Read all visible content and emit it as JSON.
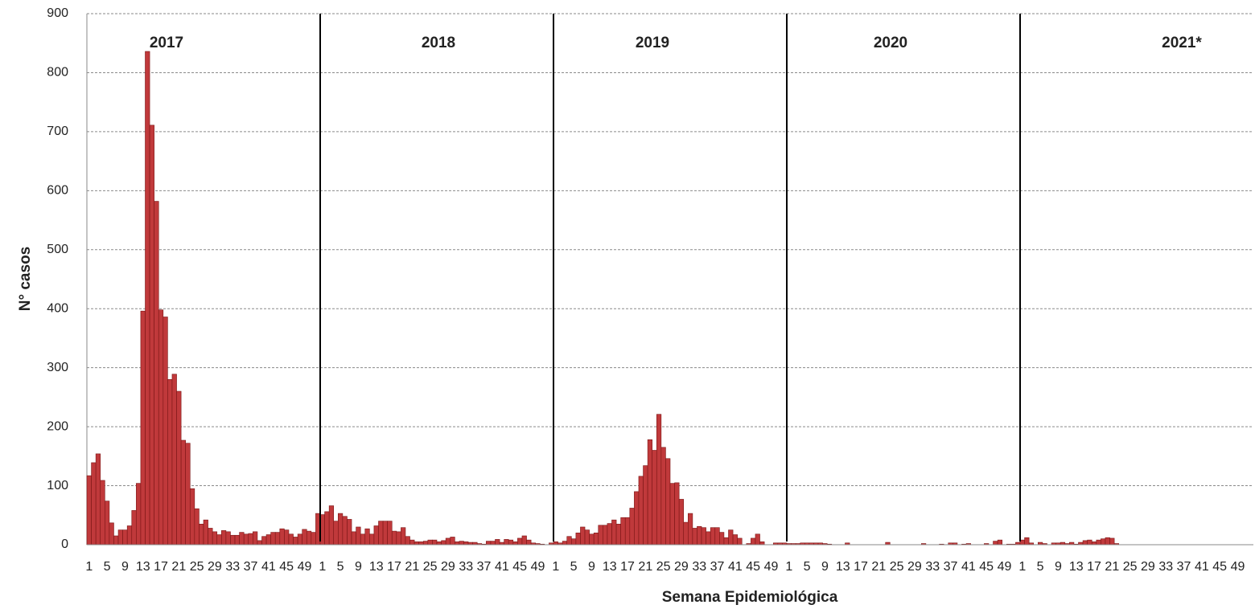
{
  "chart_data": {
    "type": "bar",
    "x_label": "Semana Epidemiológica",
    "y_label": "N° casos",
    "annotations": [
      "2017",
      "2018",
      "2019",
      "2020",
      "2021*"
    ],
    "color": "#c0393b",
    "grid": true,
    "ylim": [
      0,
      900
    ],
    "yticks": [
      0,
      100,
      200,
      300,
      400,
      500,
      600,
      700,
      800,
      900
    ],
    "categories": [
      "1",
      null,
      null,
      null,
      "5",
      null,
      null,
      null,
      "9",
      null,
      null,
      null,
      "13",
      null,
      null,
      null,
      "17",
      null,
      null,
      null,
      "21",
      null,
      null,
      null,
      "25",
      null,
      null,
      null,
      "29",
      null,
      null,
      null,
      "33",
      null,
      null,
      null,
      "37",
      null,
      null,
      null,
      "41",
      null,
      null,
      null,
      "45",
      null,
      null,
      null,
      "49",
      null,
      null,
      null,
      "1",
      null,
      null,
      null,
      "5",
      null,
      null,
      null,
      "9",
      null,
      null,
      null,
      "13",
      null,
      null,
      null,
      "17",
      null,
      null,
      null,
      "21",
      null,
      null,
      null,
      "25",
      null,
      null,
      null,
      "29",
      null,
      null,
      null,
      "33",
      null,
      null,
      null,
      "37",
      null,
      null,
      null,
      "41",
      null,
      null,
      null,
      "45",
      null,
      null,
      null,
      "49",
      null,
      null,
      null,
      "1",
      null,
      null,
      null,
      "5",
      null,
      null,
      null,
      "9",
      null,
      null,
      null,
      "13",
      null,
      null,
      null,
      "17",
      null,
      null,
      null,
      "21",
      null,
      null,
      null,
      "25",
      null,
      null,
      null,
      "29",
      null,
      null,
      null,
      "33",
      null,
      null,
      null,
      "37",
      null,
      null,
      null,
      "41",
      null,
      null,
      null,
      "45",
      null,
      null,
      null,
      "49",
      null,
      null,
      null,
      "1",
      null,
      null,
      null,
      "5",
      null,
      null,
      null,
      "9",
      null,
      null,
      null,
      "13",
      null,
      null,
      null,
      "17",
      null,
      null,
      null,
      "21",
      null,
      null,
      null,
      "25",
      null,
      null,
      null,
      "29",
      null,
      null,
      null,
      "33",
      null,
      null,
      null,
      "37",
      null,
      null,
      null,
      "41",
      null,
      null,
      null,
      "45",
      null,
      null,
      null,
      "49",
      null,
      null,
      null,
      "1",
      null,
      null,
      null,
      "5",
      null,
      null,
      null,
      "9",
      null,
      null,
      null,
      "13",
      null,
      null,
      null,
      "17",
      null,
      null,
      null,
      "21",
      null,
      null,
      null,
      "25",
      null,
      null,
      null,
      "29",
      null,
      null,
      null,
      "33",
      null,
      null,
      null,
      "37",
      null,
      null,
      null,
      "41",
      null,
      null,
      null,
      "45",
      null,
      null,
      null,
      "49",
      null,
      null,
      null
    ],
    "values": [
      117,
      139,
      154,
      109,
      74,
      37,
      15,
      25,
      25,
      32,
      58,
      104,
      396,
      836,
      711,
      582,
      398,
      386,
      280,
      289,
      260,
      177,
      172,
      95,
      61,
      35,
      42,
      28,
      22,
      17,
      24,
      22,
      16,
      16,
      21,
      18,
      19,
      22,
      7,
      14,
      17,
      21,
      21,
      27,
      25,
      18,
      13,
      18,
      26,
      23,
      21,
      53,
      51,
      56,
      66,
      40,
      53,
      48,
      43,
      22,
      30,
      18,
      27,
      18,
      32,
      40,
      40,
      40,
      23,
      22,
      29,
      14,
      8,
      5,
      5,
      6,
      8,
      8,
      5,
      7,
      11,
      13,
      5,
      6,
      5,
      4,
      4,
      2,
      1,
      6,
      6,
      9,
      4,
      9,
      8,
      5,
      11,
      15,
      8,
      3,
      2,
      1,
      0,
      3,
      5,
      3,
      6,
      14,
      10,
      20,
      30,
      25,
      18,
      20,
      33,
      33,
      36,
      42,
      35,
      46,
      46,
      62,
      90,
      116,
      134,
      178,
      160,
      221,
      165,
      146,
      104,
      105,
      77,
      38,
      53,
      28,
      31,
      29,
      22,
      29,
      29,
      21,
      12,
      25,
      17,
      11,
      0,
      2,
      11,
      18,
      5,
      0,
      0,
      3,
      3,
      3,
      2,
      2,
      2,
      3,
      3,
      3,
      3,
      3,
      2,
      1,
      0,
      0,
      0,
      3,
      0,
      0,
      0,
      0,
      0,
      0,
      0,
      0,
      4,
      0,
      0,
      0,
      0,
      0,
      0,
      0,
      2,
      0,
      0,
      0,
      1,
      0,
      3,
      3,
      0,
      1,
      2,
      0,
      0,
      0,
      2,
      0,
      6,
      8,
      0,
      1,
      1,
      4,
      8,
      12,
      3,
      0,
      4,
      2,
      0,
      3,
      3,
      4,
      2,
      4,
      1,
      4,
      7,
      8,
      5,
      8,
      10,
      12,
      11,
      2,
      null,
      null,
      null,
      null,
      null,
      null,
      null,
      null,
      null,
      null,
      null,
      null,
      null,
      null,
      null,
      null,
      null,
      null,
      null,
      null,
      null,
      null,
      null,
      null,
      null,
      null,
      null,
      null,
      null,
      null
    ]
  }
}
